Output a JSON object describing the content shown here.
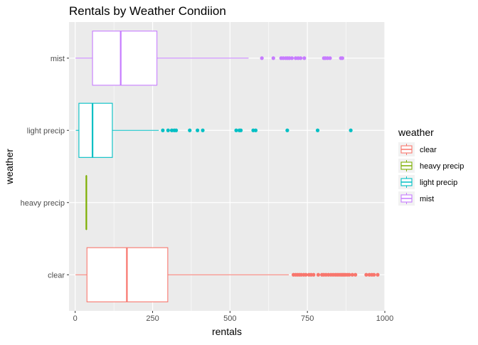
{
  "chart_data": {
    "type": "boxplot",
    "title": "Rentals by Weather Condiion",
    "xlabel": "rentals",
    "ylabel": "weather",
    "xlim": [
      -20,
      1000
    ],
    "x_ticks": [
      0,
      250,
      500,
      750,
      1000
    ],
    "categories": [
      "clear",
      "heavy precip",
      "light precip",
      "mist"
    ],
    "grid": true,
    "legend": {
      "title": "weather",
      "position": "right",
      "entries": [
        "clear",
        "heavy precip",
        "light precip",
        "mist"
      ]
    },
    "colors": {
      "clear": "#f8766d",
      "heavy precip": "#7cae00",
      "light precip": "#00bfc4",
      "mist": "#c77cff"
    },
    "series": [
      {
        "category": "clear",
        "whisker_low": 1,
        "q1": 38,
        "median": 167,
        "q3": 299,
        "whisker_high": 690,
        "outliers": [
          705,
          712,
          718,
          724,
          730,
          738,
          745,
          755,
          762,
          770,
          785,
          797,
          803,
          810,
          818,
          826,
          833,
          840,
          846,
          852,
          858,
          863,
          868,
          873,
          879,
          885,
          895,
          905,
          940,
          950,
          958,
          965,
          977
        ]
      },
      {
        "category": "heavy precip",
        "whisker_low": 36,
        "q1": 36,
        "median": 36,
        "q3": 36,
        "whisker_high": 36,
        "outliers": []
      },
      {
        "category": "light precip",
        "whisker_low": 2,
        "q1": 12,
        "median": 56,
        "q3": 120,
        "whisker_high": 270,
        "outliers": [
          283,
          300,
          312,
          320,
          326,
          370,
          395,
          412,
          520,
          530,
          535,
          575,
          583,
          685,
          783,
          890
        ]
      },
      {
        "category": "mist",
        "whisker_low": 1,
        "q1": 56,
        "median": 147,
        "q3": 264,
        "whisker_high": 560,
        "outliers": [
          603,
          640,
          665,
          672,
          680,
          686,
          692,
          700,
          712,
          720,
          728,
          740,
          803,
          808,
          815,
          823,
          858,
          863
        ]
      }
    ]
  }
}
